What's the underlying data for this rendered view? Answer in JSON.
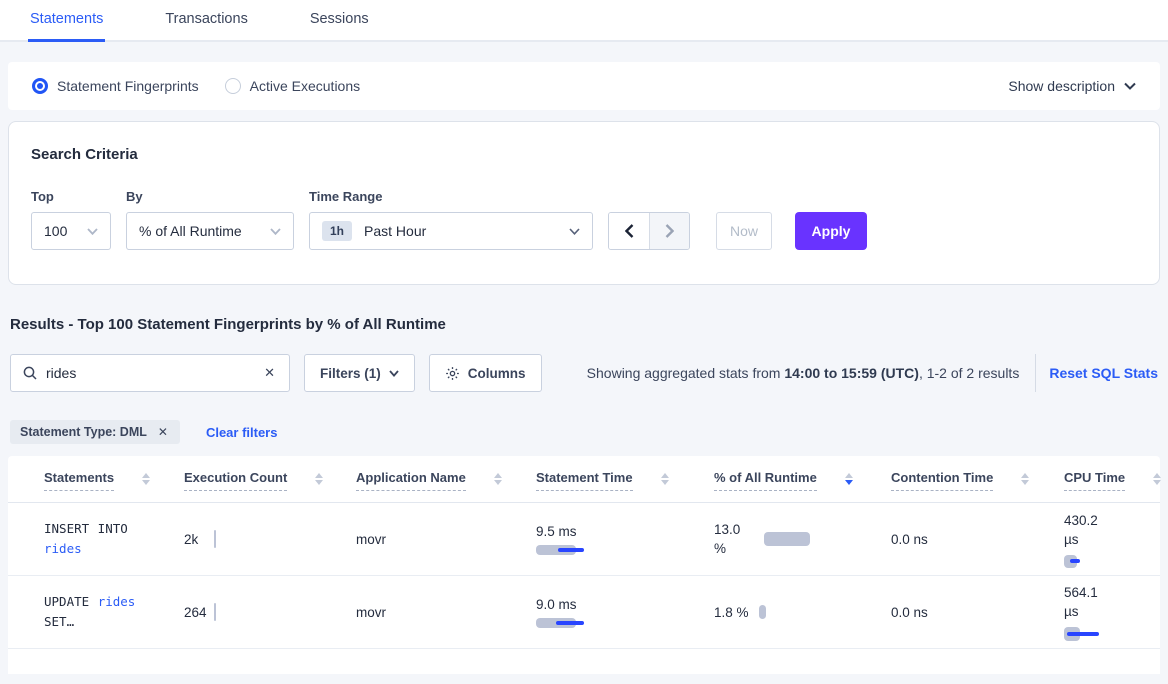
{
  "colors": {
    "primary_blue": "#2b5cf6",
    "apply_purple": "#6933ff",
    "bar_gray": "#bcc3d6",
    "bar_blue": "#2945ff"
  },
  "icons": {
    "search": "magnifier",
    "clear": "x",
    "chevron_down": "v",
    "chevron_left": "<",
    "chevron_right": ">",
    "gear": "cog",
    "sort": "up-down-triangles"
  },
  "tabs": [
    {
      "label": "Statements",
      "active": true
    },
    {
      "label": "Transactions",
      "active": false
    },
    {
      "label": "Sessions",
      "active": false
    }
  ],
  "view_toggle": {
    "options": [
      {
        "label": "Statement Fingerprints",
        "selected": true
      },
      {
        "label": "Active Executions",
        "selected": false
      }
    ],
    "show_description": "Show description"
  },
  "search_criteria": {
    "title": "Search Criteria",
    "top": {
      "label": "Top",
      "value": "100"
    },
    "by": {
      "label": "By",
      "value": "% of All Runtime"
    },
    "time_range": {
      "label": "Time Range",
      "badge": "1h",
      "value": "Past Hour"
    },
    "now_label": "Now",
    "apply_label": "Apply"
  },
  "results": {
    "heading": "Results - Top 100 Statement Fingerprints by % of All Runtime",
    "search": {
      "value": "rides"
    },
    "filters_label": "Filters (1)",
    "columns_label": "Columns",
    "summary_prefix": "Showing aggregated stats from ",
    "summary_bold": "14:00 to 15:59 (UTC)",
    "summary_suffix": ", 1-2 of 2 results",
    "reset_label": "Reset SQL Stats",
    "filter_pill": "Statement Type: DML",
    "clear_filters": "Clear filters"
  },
  "table": {
    "columns": [
      {
        "label": "Statements",
        "sorted_desc": false
      },
      {
        "label": "Execution Count",
        "sorted_desc": false
      },
      {
        "label": "Application Name",
        "sorted_desc": false
      },
      {
        "label": "Statement Time",
        "sorted_desc": false
      },
      {
        "label": "% of All Runtime",
        "sorted_desc": true
      },
      {
        "label": "Contention Time",
        "sorted_desc": false
      },
      {
        "label": "CPU Time",
        "sorted_desc": false
      }
    ],
    "rows": [
      {
        "stmt_pre": "INSERT INTO",
        "stmt_link": "rides",
        "stmt_post": "",
        "execution_count": "2k",
        "application_name": "movr",
        "statement_time": "9.5 ms",
        "pct_of_all_runtime": "13.0 %",
        "contention_time": "0.0 ns",
        "cpu_time": "430.2 µs",
        "bars": {
          "exec": {
            "gw": 2,
            "gh": 18,
            "bw": 0,
            "bx": 0
          },
          "stmt_time": {
            "gw": 40,
            "gh": 10,
            "bw": 26,
            "bx": 22
          },
          "pct": {
            "gw": 46,
            "gh": 14,
            "bw": 0,
            "bx": 0
          },
          "cpu": {
            "gw": 13,
            "gh": 13,
            "bw": 10,
            "bx": 6
          }
        }
      },
      {
        "stmt_pre": "UPDATE",
        "stmt_link": "rides",
        "stmt_post": "SET…",
        "execution_count": "264",
        "application_name": "movr",
        "statement_time": "9.0 ms",
        "pct_of_all_runtime": "1.8 %",
        "contention_time": "0.0 ns",
        "cpu_time": "564.1 µs",
        "bars": {
          "exec": {
            "gw": 2,
            "gh": 18,
            "bw": 0,
            "bx": 0
          },
          "stmt_time": {
            "gw": 40,
            "gh": 10,
            "bw": 28,
            "bx": 20
          },
          "pct": {
            "gw": 7,
            "gh": 14,
            "bw": 0,
            "bx": 0
          },
          "cpu": {
            "gw": 16,
            "gh": 14,
            "bw": 32,
            "bx": 3
          }
        }
      }
    ]
  }
}
